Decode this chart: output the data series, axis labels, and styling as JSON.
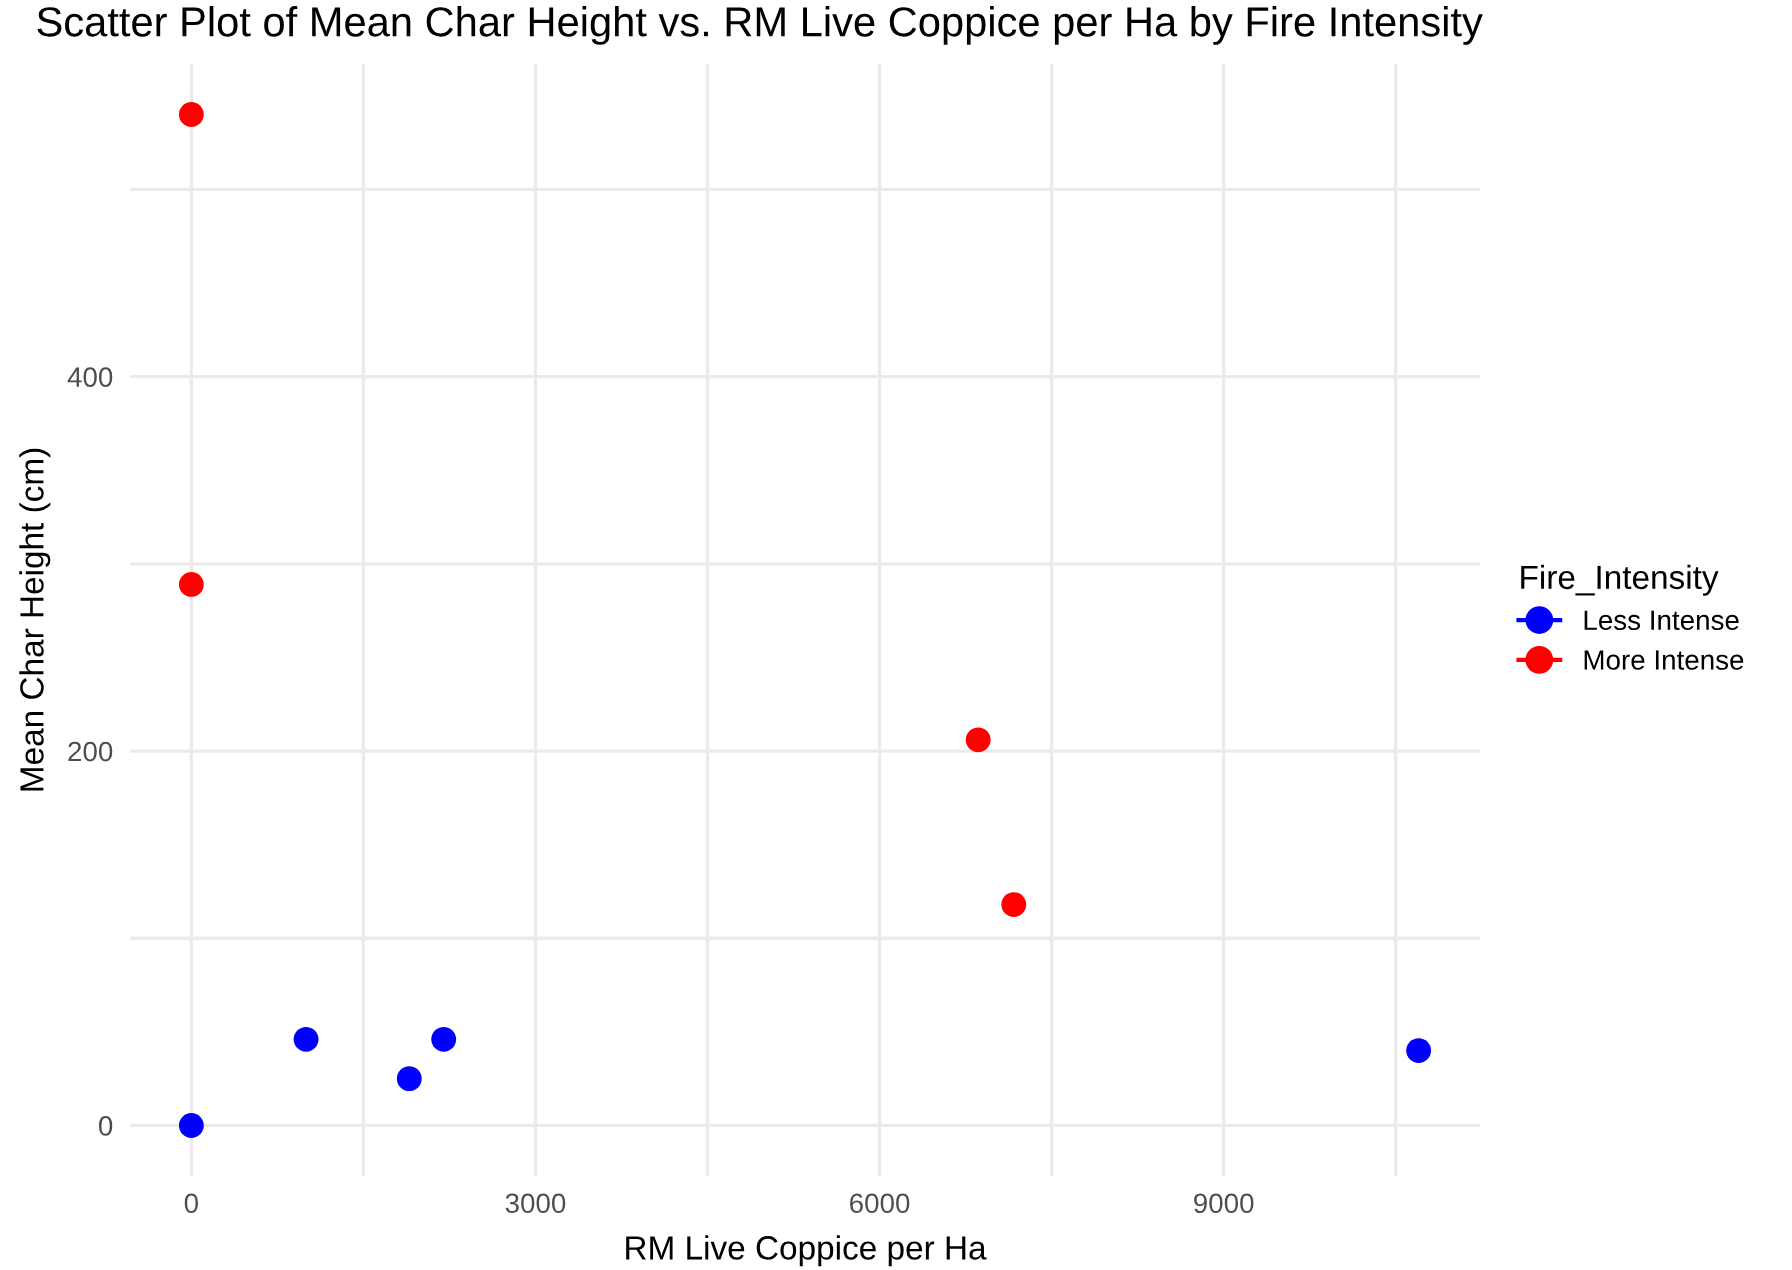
{
  "chart_data": {
    "type": "scatter",
    "title": "Scatter Plot of Mean Char Height vs. RM Live Coppice per Ha by Fire Intensity",
    "xlabel": "RM Live Coppice per Ha",
    "ylabel": "Mean Char Height (cm)",
    "legend_title": "Fire_Intensity",
    "series": [
      {
        "name": "Less Intense",
        "color": "#0000ff",
        "x": [
          0,
          1000,
          1900,
          2200,
          10700
        ],
        "values": [
          0,
          46,
          25,
          46,
          40
        ]
      },
      {
        "name": "More Intense",
        "color": "#ff0000",
        "x": [
          0,
          0,
          6860,
          7170
        ],
        "values": [
          540,
          289,
          206,
          118
        ]
      }
    ],
    "xlim": [
      -535,
      11235
    ],
    "ylim": [
      -27,
      567
    ],
    "xticks": [
      0,
      {
        "value": 1500,
        "label": null
      },
      3000,
      {
        "value": 4500,
        "label": null
      },
      6000,
      {
        "value": 7500,
        "label": null
      },
      9000,
      {
        "value": 10500,
        "label": null
      }
    ],
    "yticks": [
      0,
      {
        "value": 100,
        "label": null
      },
      200,
      {
        "value": 300,
        "label": null
      },
      400,
      {
        "value": 500,
        "label": null
      }
    ],
    "grid": true,
    "legend": "right",
    "marker": "circle"
  }
}
